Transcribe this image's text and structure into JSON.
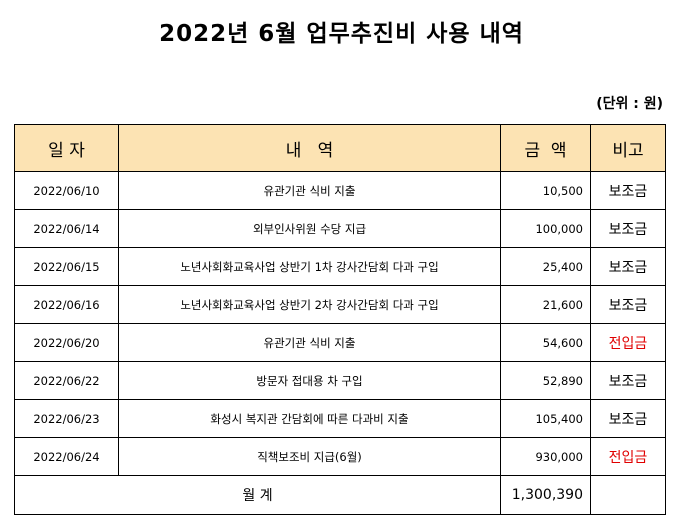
{
  "title": "2022년 6월 업무추진비 사용 내역",
  "unit": "(단위 : 원)",
  "headers": {
    "date": "일 자",
    "desc": "내   역",
    "amount": "금  액",
    "note": "비고"
  },
  "rows": [
    {
      "date": "2022/06/10",
      "desc": "유관기관 식비 지출",
      "amount": "10,500",
      "note": "보조금",
      "note_color": "#000000"
    },
    {
      "date": "2022/06/14",
      "desc": "외부인사위원 수당 지급",
      "amount": "100,000",
      "note": "보조금",
      "note_color": "#000000"
    },
    {
      "date": "2022/06/15",
      "desc": "노년사회화교육사업 상반기 1차 강사간담회 다과 구입",
      "amount": "25,400",
      "note": "보조금",
      "note_color": "#000000"
    },
    {
      "date": "2022/06/16",
      "desc": "노년사회화교육사업 상반기 2차 강사간담회 다과 구입",
      "amount": "21,600",
      "note": "보조금",
      "note_color": "#000000"
    },
    {
      "date": "2022/06/20",
      "desc": "유관기관 식비 지출",
      "amount": "54,600",
      "note": "전입금",
      "note_color": "#e00000"
    },
    {
      "date": "2022/06/22",
      "desc": "방문자 접대용 차 구입",
      "amount": "52,890",
      "note": "보조금",
      "note_color": "#000000"
    },
    {
      "date": "2022/06/23",
      "desc": "화성시 복지관 간담회에 따른 다과비 지출",
      "amount": "105,400",
      "note": "보조금",
      "note_color": "#000000"
    },
    {
      "date": "2022/06/24",
      "desc": "직책보조비 지급(6월)",
      "amount": "930,000",
      "note": "전입금",
      "note_color": "#e00000"
    }
  ],
  "total": {
    "label": "월 계",
    "amount": "1,300,390"
  },
  "colors": {
    "header_bg": "#fce3b3",
    "red": "#e00000"
  }
}
